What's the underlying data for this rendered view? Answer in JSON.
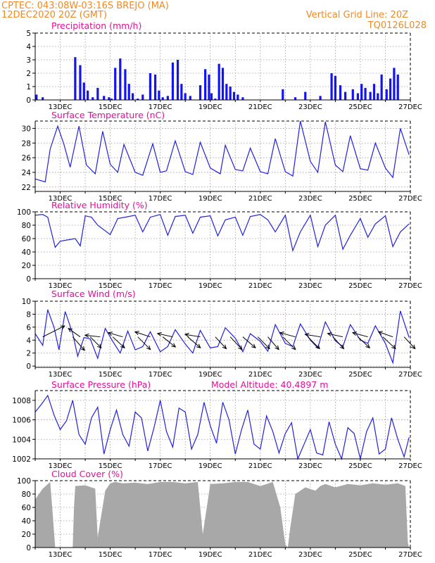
{
  "header": {
    "line1": "CPTEC:   043:08W-03:16S   BREJO (MA)",
    "line2": "12DEC2020 20Z (GMT)",
    "vgrid": "Vertical Grid Line: 20Z",
    "model": "TQ0126L028"
  },
  "colors": {
    "header": "#f08a24",
    "title": "#e0109a",
    "line": "#2222dd",
    "bar": "#1414f0",
    "cloud": "#a8a8a8"
  },
  "chart_data": [
    {
      "type": "bar",
      "title": "Precipitation (mm/h)",
      "ylim": [
        0,
        5
      ],
      "yticks": [
        0,
        1,
        2,
        3,
        4,
        5
      ],
      "xticks": [
        "13DEC",
        "15DEC",
        "17DEC",
        "19DEC",
        "21DEC",
        "23DEC",
        "25DEC",
        "27DEC"
      ],
      "x_days": [
        0.05,
        0.3,
        1.6,
        1.8,
        1.95,
        2.1,
        2.3,
        2.5,
        2.75,
        2.95,
        3.05,
        3.2,
        3.4,
        3.6,
        3.75,
        3.9,
        4.1,
        4.3,
        4.6,
        4.8,
        4.95,
        5.1,
        5.3,
        5.5,
        5.7,
        5.85,
        6.0,
        6.2,
        6.6,
        6.8,
        6.95,
        7.05,
        7.2,
        7.35,
        7.5,
        7.65,
        7.8,
        7.95,
        8.1,
        8.3,
        9.9,
        10.4,
        10.8,
        11.4,
        11.85,
        12.0,
        12.2,
        12.4,
        12.7,
        12.9,
        13.05,
        13.2,
        13.4,
        13.55,
        13.7,
        13.85,
        14.05,
        14.2,
        14.35,
        14.5
      ],
      "values": [
        0.4,
        0.2,
        3.2,
        2.6,
        1.3,
        0.7,
        0.2,
        0.9,
        0.3,
        0.2,
        0.1,
        2.4,
        3.1,
        2.3,
        1.2,
        0.5,
        0.1,
        0.4,
        2.0,
        1.9,
        0.7,
        0.2,
        0.3,
        2.8,
        3.0,
        1.2,
        0.5,
        0.3,
        1.1,
        2.3,
        1.9,
        0.5,
        0.1,
        2.7,
        2.4,
        1.2,
        1.0,
        0.6,
        0.4,
        0.2,
        0.8,
        0.2,
        0.6,
        0.3,
        2.0,
        1.8,
        1.1,
        0.6,
        0.8,
        0.5,
        1.2,
        0.9,
        0.6,
        1.2,
        0.5,
        1.9,
        0.8,
        1.6,
        2.4,
        1.9
      ]
    },
    {
      "type": "line",
      "title": "Surface Temperature (nC)",
      "ylim": [
        21.4,
        31
      ],
      "yticks": [
        22,
        24,
        26,
        28,
        30
      ],
      "xticks": [
        "13DEC",
        "15DEC",
        "17DEC",
        "19DEC",
        "21DEC",
        "23DEC",
        "25DEC",
        "27DEC"
      ],
      "x_days": [
        0,
        0.4,
        0.6,
        0.9,
        1.15,
        1.4,
        1.75,
        2.05,
        2.4,
        2.7,
        3.0,
        3.3,
        3.55,
        4.0,
        4.3,
        4.7,
        5.0,
        5.25,
        5.6,
        6.0,
        6.3,
        6.6,
        7.0,
        7.4,
        7.6,
        8.0,
        8.3,
        8.6,
        9.0,
        9.3,
        9.6,
        10.0,
        10.3,
        10.6,
        11.0,
        11.3,
        11.6,
        12.0,
        12.3,
        12.6,
        13.0,
        13.3,
        13.6,
        14.0,
        14.3,
        14.6,
        14.95
      ],
      "values": [
        23.1,
        22.7,
        27.2,
        30.3,
        27.8,
        24.7,
        30.3,
        25.0,
        23.8,
        29.6,
        25.1,
        24.0,
        27.8,
        24.0,
        23.6,
        27.9,
        24.0,
        24.2,
        28.3,
        24.1,
        23.7,
        28.1,
        24.6,
        23.8,
        27.7,
        24.4,
        24.2,
        27.3,
        24.1,
        23.8,
        28.6,
        24.1,
        23.5,
        31.0,
        25.5,
        24.0,
        30.9,
        25.0,
        24.1,
        29.0,
        24.5,
        24.3,
        28.0,
        24.6,
        23.3,
        30.0,
        26.4
      ]
    },
    {
      "type": "line",
      "title": "Relative Humidity (%)",
      "ylim": [
        0,
        100
      ],
      "yticks": [
        0,
        20,
        40,
        60,
        80,
        100
      ],
      "xticks": [
        "13DEC",
        "15DEC",
        "17DEC",
        "19DEC",
        "21DEC",
        "23DEC",
        "25DEC",
        "27DEC"
      ],
      "x_days": [
        0,
        0.3,
        0.5,
        0.8,
        1.0,
        1.3,
        1.6,
        1.8,
        2.0,
        2.25,
        2.5,
        3.0,
        3.3,
        3.6,
        4.0,
        4.3,
        4.6,
        5.0,
        5.3,
        5.6,
        6.0,
        6.3,
        6.6,
        7.0,
        7.3,
        7.6,
        8.0,
        8.3,
        8.6,
        9.0,
        9.3,
        9.6,
        10.0,
        10.3,
        10.6,
        11.0,
        11.3,
        11.6,
        12.0,
        12.3,
        12.6,
        13.0,
        13.3,
        13.6,
        14.0,
        14.3,
        14.6,
        14.95
      ],
      "values": [
        95,
        96,
        92,
        47,
        56,
        58,
        60,
        49,
        94,
        92,
        80,
        66,
        90,
        92,
        95,
        70,
        92,
        96,
        65,
        93,
        95,
        68,
        92,
        94,
        64,
        88,
        92,
        65,
        93,
        96,
        88,
        70,
        95,
        42,
        70,
        95,
        48,
        80,
        95,
        44,
        65,
        90,
        62,
        82,
        94,
        48,
        70,
        82
      ]
    },
    {
      "type": "line",
      "title": "Surface Wind (m/s)",
      "ylim": [
        -0.2,
        10
      ],
      "yticks": [
        0,
        2,
        4,
        6,
        8,
        10
      ],
      "xticks": [
        "13DEC",
        "15DEC",
        "17DEC",
        "19DEC",
        "21DEC",
        "23DEC",
        "25DEC",
        "27DEC"
      ],
      "x_days": [
        0,
        0.3,
        0.5,
        0.75,
        0.95,
        1.2,
        1.5,
        1.7,
        1.95,
        2.2,
        2.5,
        2.8,
        3.1,
        3.4,
        3.7,
        4.0,
        4.3,
        4.6,
        5.0,
        5.3,
        5.6,
        6.0,
        6.3,
        6.6,
        7.0,
        7.3,
        7.6,
        8.0,
        8.3,
        8.6,
        9.0,
        9.3,
        9.6,
        10.0,
        10.3,
        10.6,
        11.0,
        11.3,
        11.6,
        12.0,
        12.3,
        12.6,
        13.0,
        13.3,
        13.6,
        14.0,
        14.3,
        14.6,
        14.95
      ],
      "values": [
        5.0,
        3.2,
        8.7,
        6.0,
        2.5,
        8.4,
        5.0,
        1.5,
        4.4,
        4.2,
        1.2,
        5.8,
        3.8,
        2.0,
        5.4,
        2.5,
        3.0,
        5.3,
        2.2,
        3.0,
        5.6,
        3.4,
        2.0,
        5.5,
        2.8,
        3.0,
        5.9,
        4.3,
        2.2,
        5.0,
        3.8,
        2.3,
        6.4,
        3.5,
        3.0,
        6.5,
        4.0,
        2.8,
        6.8,
        3.9,
        3.0,
        6.4,
        4.0,
        3.5,
        6.2,
        3.5,
        0.5,
        8.5,
        4.4
      ],
      "arrows": [
        {
          "x": 0.3,
          "u": 2.6,
          "v": 1.3
        },
        {
          "x": 1.5,
          "u": 1.4,
          "v": -1.6
        },
        {
          "x": 1.8,
          "u": -1.4,
          "v": 1.0
        },
        {
          "x": 2.2,
          "u": 1.3,
          "v": -1.3
        },
        {
          "x": 2.6,
          "u": -1.8,
          "v": 0.2
        },
        {
          "x": 3.1,
          "u": 1.4,
          "v": -1.3
        },
        {
          "x": 3.5,
          "u": -1.7,
          "v": 0.5
        },
        {
          "x": 4.1,
          "u": 1.5,
          "v": -1.5
        },
        {
          "x": 4.6,
          "u": -1.8,
          "v": 0.6
        },
        {
          "x": 5.1,
          "u": 1.5,
          "v": -1.2
        },
        {
          "x": 5.5,
          "u": -1.8,
          "v": 0.4
        },
        {
          "x": 6.1,
          "u": 1.5,
          "v": -1.3
        },
        {
          "x": 6.6,
          "u": -1.8,
          "v": 0.3
        },
        {
          "x": 7.2,
          "u": 1.3,
          "v": -1.4
        },
        {
          "x": 7.8,
          "u": 1.4,
          "v": -1.5
        },
        {
          "x": 8.3,
          "u": 1.5,
          "v": -1.3
        },
        {
          "x": 8.9,
          "u": 1.4,
          "v": -1.4
        },
        {
          "x": 9.3,
          "u": 1.3,
          "v": -1.5
        },
        {
          "x": 9.9,
          "u": 1.5,
          "v": -1.5
        },
        {
          "x": 10.4,
          "u": -1.8,
          "v": 0.5
        },
        {
          "x": 10.9,
          "u": 1.4,
          "v": -1.4
        },
        {
          "x": 11.4,
          "u": -1.8,
          "v": 0.3
        },
        {
          "x": 11.9,
          "u": 1.3,
          "v": -1.4
        },
        {
          "x": 12.3,
          "u": -1.8,
          "v": 0.4
        },
        {
          "x": 12.9,
          "u": 1.4,
          "v": -1.3
        },
        {
          "x": 13.3,
          "u": -1.8,
          "v": 0.5
        },
        {
          "x": 13.9,
          "u": 1.5,
          "v": -1.4
        },
        {
          "x": 14.3,
          "u": -1.7,
          "v": 0.6
        },
        {
          "x": 14.75,
          "u": 1.3,
          "v": -1.4
        }
      ]
    },
    {
      "type": "line",
      "title": "Surface Pressure (hPa)",
      "annotation": "Model Altitude: 40.4897 m",
      "ylim": [
        1002,
        1009
      ],
      "yticks": [
        1002,
        1004,
        1006,
        1008
      ],
      "xticks": [
        "13DEC",
        "15DEC",
        "17DEC",
        "19DEC",
        "21DEC",
        "23DEC",
        "25DEC",
        "27DEC"
      ],
      "x_days": [
        0,
        0.25,
        0.5,
        0.75,
        1.0,
        1.25,
        1.5,
        1.75,
        2.0,
        2.25,
        2.5,
        2.75,
        3.0,
        3.25,
        3.5,
        3.75,
        4.0,
        4.25,
        4.5,
        4.75,
        5.0,
        5.25,
        5.5,
        5.75,
        6.0,
        6.25,
        6.5,
        6.75,
        7.0,
        7.25,
        7.5,
        7.75,
        8.0,
        8.25,
        8.5,
        8.75,
        9.0,
        9.25,
        9.5,
        9.75,
        10.0,
        10.25,
        10.5,
        10.75,
        11.0,
        11.25,
        11.5,
        11.75,
        12.0,
        12.25,
        12.5,
        12.75,
        13.0,
        13.25,
        13.5,
        13.75,
        14.0,
        14.25,
        14.5,
        14.75,
        14.95
      ],
      "values": [
        1006.8,
        1007.6,
        1008.5,
        1006.5,
        1005.0,
        1005.9,
        1008.0,
        1004.5,
        1003.5,
        1006.2,
        1007.3,
        1002.5,
        1005.0,
        1007.0,
        1004.5,
        1003.3,
        1006.8,
        1006.2,
        1002.8,
        1005.2,
        1008.0,
        1004.8,
        1003.2,
        1007.2,
        1006.8,
        1003.0,
        1004.5,
        1007.8,
        1005.4,
        1003.6,
        1007.8,
        1006.0,
        1002.5,
        1005.0,
        1007.0,
        1003.5,
        1003.0,
        1006.4,
        1004.8,
        1002.6,
        1004.6,
        1005.7,
        1002.0,
        1003.5,
        1005.0,
        1002.6,
        1002.4,
        1005.8,
        1003.5,
        1002.0,
        1005.2,
        1004.6,
        1002.0,
        1004.8,
        1006.2,
        1002.5,
        1003.0,
        1006.2,
        1004.0,
        1002.2,
        1004.2
      ]
    },
    {
      "type": "area",
      "title": "Cloud Cover (%)",
      "ylim": [
        0,
        100
      ],
      "yticks": [
        0,
        20,
        40,
        60,
        80,
        100
      ],
      "xticks": [
        "13DEC",
        "15DEC",
        "17DEC",
        "19DEC",
        "21DEC",
        "23DEC",
        "25DEC",
        "27DEC"
      ],
      "x_days": [
        0,
        0.3,
        0.6,
        0.7,
        0.8,
        0.85,
        1.0,
        1.1,
        1.3,
        1.5,
        1.55,
        1.6,
        2.0,
        2.4,
        2.5,
        2.8,
        3.0,
        3.2,
        3.5,
        4.0,
        4.5,
        5.0,
        5.5,
        6.0,
        6.5,
        6.7,
        7.0,
        7.5,
        8.0,
        8.5,
        9.0,
        9.5,
        9.8,
        10.0,
        10.1,
        10.2,
        10.4,
        10.8,
        11.2,
        11.4,
        11.6,
        12.0,
        12.5,
        13.0,
        13.5,
        14.0,
        14.5,
        14.8,
        14.9,
        14.95
      ],
      "values": [
        72,
        88,
        98,
        50,
        0,
        0,
        0,
        0,
        0,
        0,
        60,
        92,
        93,
        88,
        15,
        85,
        96,
        98,
        96,
        97,
        95,
        98,
        98,
        96,
        98,
        20,
        95,
        96,
        98,
        98,
        92,
        98,
        60,
        5,
        0,
        30,
        80,
        90,
        85,
        92,
        95,
        90,
        95,
        93,
        96,
        94,
        96,
        92,
        8,
        0
      ]
    }
  ]
}
